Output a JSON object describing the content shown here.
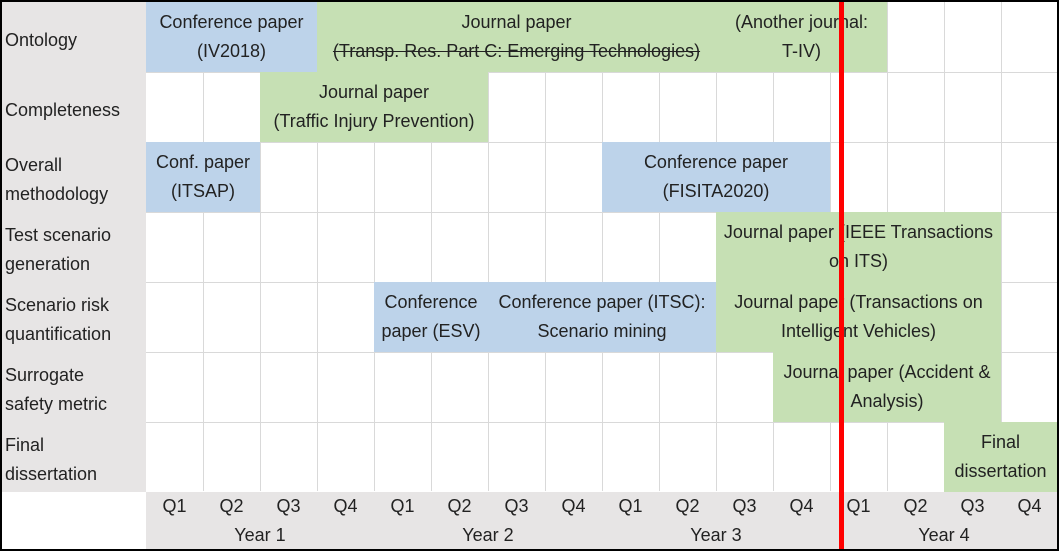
{
  "rows": [
    {
      "lines": [
        "Ontology"
      ]
    },
    {
      "lines": [
        "Completeness"
      ]
    },
    {
      "lines": [
        "Overall",
        "methodology"
      ]
    },
    {
      "lines": [
        "Test scenario",
        "generation"
      ]
    },
    {
      "lines": [
        "Scenario risk",
        "quantification"
      ]
    },
    {
      "lines": [
        "Surrogate",
        "safety metric"
      ]
    },
    {
      "lines": [
        "Final",
        "dissertation"
      ]
    }
  ],
  "quarters": [
    "Q1",
    "Q2",
    "Q3",
    "Q4",
    "Q1",
    "Q2",
    "Q3",
    "Q4",
    "Q1",
    "Q2",
    "Q3",
    "Q4",
    "Q1",
    "Q2",
    "Q3",
    "Q4"
  ],
  "years": [
    "Year 1",
    "Year 2",
    "Year 3",
    "Year 4"
  ],
  "blocks": [
    {
      "row": 0,
      "start": 0,
      "end": 3,
      "kind": "conference",
      "lines": [
        "Conference paper",
        "(IV2018)"
      ],
      "strike": []
    },
    {
      "row": 0,
      "start": 3,
      "end": 10,
      "kind": "journal",
      "lines": [
        "Journal paper",
        "(Transp. Res. Part C: Emerging Technologies)"
      ],
      "strike": [
        1
      ]
    },
    {
      "row": 0,
      "start": 10,
      "end": 13,
      "kind": "journal",
      "lines": [
        "(Another journal:",
        "T-IV)"
      ],
      "strike": []
    },
    {
      "row": 1,
      "start": 2,
      "end": 6,
      "kind": "journal",
      "lines": [
        "Journal paper",
        "(Traffic Injury Prevention)"
      ],
      "strike": []
    },
    {
      "row": 2,
      "start": 0,
      "end": 2,
      "kind": "conference",
      "lines": [
        "Conf. paper",
        "(ITSAP)"
      ],
      "strike": []
    },
    {
      "row": 2,
      "start": 8,
      "end": 12,
      "kind": "conference",
      "lines": [
        "Conference paper",
        "(FISITA2020)"
      ],
      "strike": []
    },
    {
      "row": 3,
      "start": 10,
      "end": 15,
      "kind": "journal",
      "lines": [
        "Journal paper (IEEE Transactions",
        "on ITS)"
      ],
      "strike": []
    },
    {
      "row": 4,
      "start": 4,
      "end": 6,
      "kind": "conference",
      "lines": [
        "Conference",
        "paper (ESV)"
      ],
      "strike": []
    },
    {
      "row": 4,
      "start": 6,
      "end": 10,
      "kind": "conference",
      "lines": [
        "Conference paper (ITSC):",
        "Scenario mining"
      ],
      "strike": []
    },
    {
      "row": 4,
      "start": 10,
      "end": 15,
      "kind": "journal",
      "lines": [
        "Journal paper (Transactions on",
        "Intelligent Vehicles)"
      ],
      "strike": []
    },
    {
      "row": 5,
      "start": 11,
      "end": 15,
      "kind": "journal",
      "lines": [
        "Journal paper (Accident &",
        "Analysis)"
      ],
      "strike": []
    },
    {
      "row": 6,
      "start": 14,
      "end": 16,
      "kind": "journal",
      "lines": [
        "Final",
        "dissertation"
      ],
      "strike": []
    }
  ],
  "colors": {
    "conference": "#bdd3ea",
    "journal": "#c6e0b4",
    "label_bg": "#e7e5e5",
    "today_line": "#ff0000"
  },
  "today_marker_quarter_index": 12.2
}
